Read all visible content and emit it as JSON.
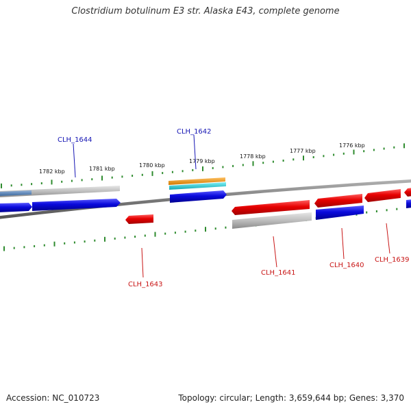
{
  "header": {
    "title": "Clostridium botulinum E3 str. Alaska E43, complete genome"
  },
  "footer": {
    "accession": "Accession: NC_010723",
    "topology": "Topology: circular; Length: 3,659,644 bp; Genes: 3,370"
  },
  "colors": {
    "backbone": "#8c8c8c",
    "tick": "#2e8b2e",
    "forward_gene": "#0a0adc",
    "reverse_gene": "#e60000",
    "other_gene": "#b4b4b4",
    "orange_feature": "#f0960a",
    "cyan_feature": "#19c8d2",
    "forward_label": "#1414b4",
    "reverse_label": "#c81414"
  },
  "scale": {
    "kbp_labels": [
      {
        "id": "1782",
        "text": "1782 kbp"
      },
      {
        "id": "1781",
        "text": "1781 kbp"
      },
      {
        "id": "1780",
        "text": "1780 kbp"
      },
      {
        "id": "1779",
        "text": "1779 kbp"
      },
      {
        "id": "1778",
        "text": "1778 kbp"
      },
      {
        "id": "1777",
        "text": "1777 kbp"
      },
      {
        "id": "1776",
        "text": "1776 kbp"
      }
    ]
  },
  "gene_labels": [
    {
      "id": "CLH_1644",
      "text": "CLH_1644",
      "strand": "forward"
    },
    {
      "id": "CLH_1642",
      "text": "CLH_1642",
      "strand": "forward"
    },
    {
      "id": "CLH_1643",
      "text": "CLH_1643",
      "strand": "reverse"
    },
    {
      "id": "CLH_1641",
      "text": "CLH_1641",
      "strand": "reverse"
    },
    {
      "id": "CLH_1640",
      "text": "CLH_1640",
      "strand": "reverse"
    },
    {
      "id": "CLH_1639",
      "text": "CLH_1639",
      "strand": "reverse"
    }
  ]
}
